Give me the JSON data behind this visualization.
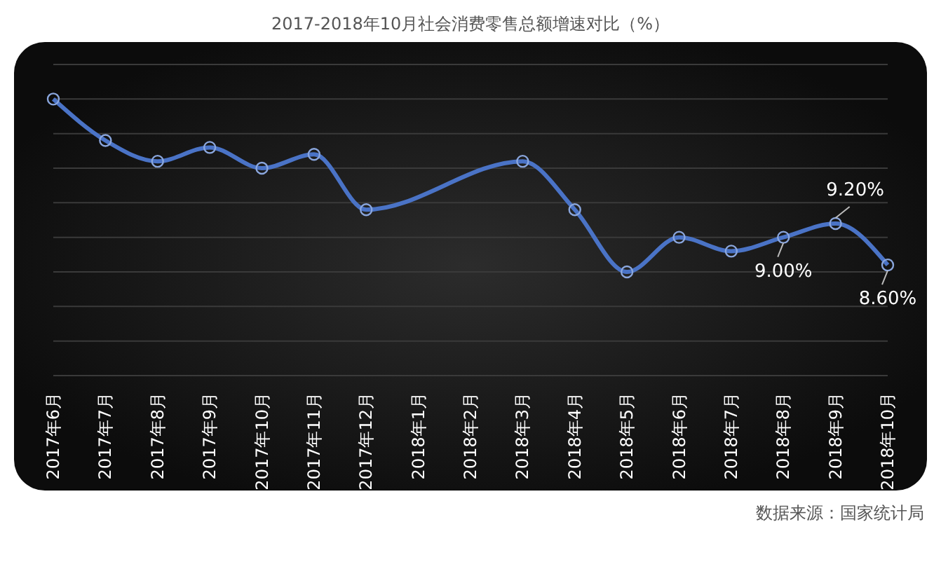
{
  "chart_data": {
    "type": "line",
    "title": "2017-2018年10月社会消费零售总额增速对比（%）",
    "categories": [
      "2017年6月",
      "2017年7月",
      "2017年8月",
      "2017年9月",
      "2017年10月",
      "2017年11月",
      "2017年12月",
      "2018年1月",
      "2018年2月",
      "2018年3月",
      "2018年4月",
      "2018年5月",
      "2018年6月",
      "2018年7月",
      "2018年8月",
      "2018年9月",
      "2018年10月"
    ],
    "series": [
      {
        "color": "#4a73c6",
        "values": [
          11.0,
          10.4,
          10.1,
          10.3,
          10.0,
          10.2,
          9.4,
          null,
          null,
          10.1,
          9.4,
          8.5,
          9.0,
          8.8,
          9.0,
          9.2,
          8.6
        ],
        "value_labels": [
          null,
          null,
          null,
          null,
          null,
          null,
          null,
          null,
          null,
          null,
          null,
          null,
          null,
          null,
          "9.00%",
          "9.20%",
          "8.60%"
        ]
      }
    ],
    "ylim": [
      7,
      11.5
    ],
    "yticks": [
      {
        "value": 7,
        "label": null
      },
      {
        "value": 7.5,
        "label": null
      },
      {
        "value": 8,
        "label": null
      },
      {
        "value": 8.5,
        "label": null
      },
      {
        "value": 9,
        "label": null
      },
      {
        "value": 9.5,
        "label": null
      },
      {
        "value": 10,
        "label": null
      },
      {
        "value": 10.5,
        "label": null
      },
      {
        "value": 11,
        "label": null
      },
      {
        "value": 11.5,
        "label": null
      }
    ],
    "tick_labels": "x",
    "grid": "y",
    "marker": "circle",
    "line_style": "solid",
    "legend": false,
    "annotations": [
      "数据来源：国家统计局"
    ]
  }
}
